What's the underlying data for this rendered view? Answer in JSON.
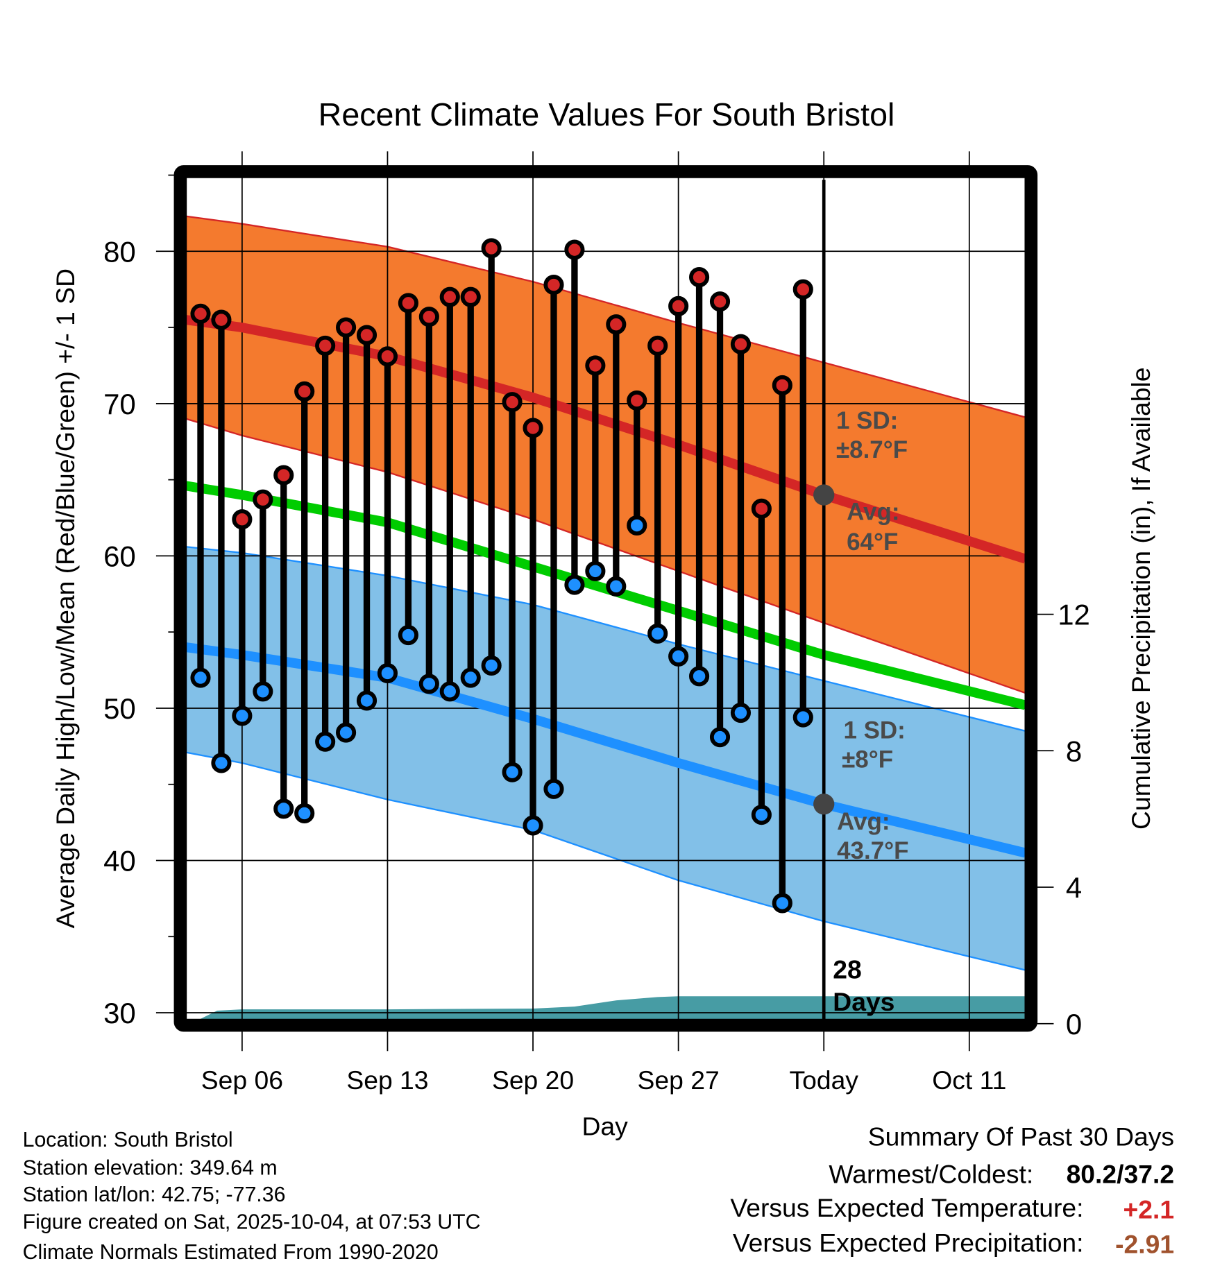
{
  "chart_data": {
    "type": "line",
    "title": "Recent Climate Values For South Bristol",
    "xlabel": "Day",
    "ylabel": "Average Daily High/Low/Mean (Red/Blue/Green) +/- 1 SD",
    "ylabel_right": "Cumulative Precipitation (in), If Available",
    "ylim": [
      29.5,
      84.7
    ],
    "ylim_right": [
      0,
      24.8
    ],
    "xlim_days_from_sep04": [
      -0.7,
      39.7
    ],
    "yticks": [
      30,
      40,
      50,
      60,
      70,
      80
    ],
    "yticks_right": [
      0,
      4,
      8,
      12
    ],
    "xticks": [
      {
        "day": 2,
        "label": "Sep 06"
      },
      {
        "day": 9,
        "label": "Sep 13"
      },
      {
        "day": 16,
        "label": "Sep 20"
      },
      {
        "day": 23,
        "label": "Sep 27"
      },
      {
        "day": 30,
        "label": "Today"
      },
      {
        "day": 37,
        "label": "Oct 11"
      }
    ],
    "grid": true,
    "today_day": 30,
    "days_label": [
      "28",
      "Days"
    ],
    "highs": [
      75.9,
      75.5,
      62.4,
      63.7,
      65.3,
      70.8,
      73.8,
      75.0,
      74.5,
      73.1,
      76.6,
      75.7,
      77.0,
      77.0,
      80.2,
      70.1,
      68.4,
      77.8,
      80.1,
      72.5,
      75.2,
      70.2,
      73.8,
      76.4,
      78.3,
      76.7,
      73.9,
      63.1,
      71.2,
      77.5
    ],
    "lows": [
      52.0,
      46.4,
      49.5,
      51.1,
      43.4,
      43.1,
      47.8,
      48.4,
      50.5,
      52.3,
      54.8,
      51.6,
      51.1,
      52.0,
      52.8,
      45.8,
      42.3,
      44.7,
      58.1,
      59.0,
      58.0,
      62.0,
      54.9,
      53.4,
      52.1,
      48.1,
      49.7,
      43.0,
      37.2,
      49.4
    ],
    "normal_days": [
      -0.7,
      2,
      9,
      16,
      23,
      30,
      39.7
    ],
    "normal_high": [
      75.5,
      75.0,
      73.1,
      70.4,
      67.3,
      64.0,
      59.8
    ],
    "normal_high_upper": [
      82.3,
      81.8,
      80.3,
      78.0,
      75.3,
      72.7,
      69.1
    ],
    "normal_high_lower": [
      69.0,
      67.9,
      65.5,
      62.4,
      59.0,
      55.6,
      51.0
    ],
    "normal_mean": [
      64.6,
      64.0,
      62.2,
      59.3,
      56.4,
      53.5,
      50.2
    ],
    "normal_low": [
      54.0,
      53.5,
      52.0,
      49.3,
      46.4,
      43.7,
      40.5
    ],
    "normal_low_upper": [
      60.6,
      60.2,
      58.7,
      56.8,
      54.2,
      51.8,
      48.5
    ],
    "normal_low_lower": [
      47.1,
      46.4,
      44.0,
      42.0,
      38.7,
      36.0,
      32.8
    ],
    "precip_days": [
      -0.7,
      -0.3,
      0.8,
      2,
      9,
      16,
      18,
      20,
      22,
      23,
      30,
      39.7
    ],
    "precip_values": [
      0,
      0.05,
      0.38,
      0.42,
      0.42,
      0.44,
      0.5,
      0.68,
      0.78,
      0.8,
      0.8,
      0.8
    ],
    "annotations": {
      "high_sd_label": "1 SD:",
      "high_sd_value": "±8.7°F",
      "high_avg_label": "Avg:",
      "high_avg_value": "64°F",
      "low_sd_label": "1 SD:",
      "low_sd_value": "±8°F",
      "low_avg_label": "Avg:",
      "low_avg_value": "43.7°F"
    },
    "colors": {
      "high": "#d42626",
      "low": "#1e90ff",
      "orange": "#f47a2e",
      "blue_band": "#82c0e8",
      "green": "#00cc00",
      "precip": "#479ca4",
      "annot": "#4a4a4a"
    }
  },
  "info": {
    "location": "Location: South Bristol",
    "elevation": "Station elevation: 349.64 m",
    "latlon": "Station lat/lon: 42.75; -77.36",
    "created": "Figure created on Sat, 2025-10-04, at 07:53 UTC",
    "normals": "Climate Normals Estimated From 1990-2020"
  },
  "summary": {
    "title": "Summary Of Past 30 Days",
    "warm_cold_label": "Warmest/Coldest:",
    "warm_cold_value": "80.2/37.2",
    "temp_label": "Versus Expected Temperature:",
    "temp_value": "+2.1",
    "temp_color": "#d42626",
    "precip_label": "Versus Expected Precipitation:",
    "precip_value": "-2.91",
    "precip_color": "#a0522d"
  }
}
